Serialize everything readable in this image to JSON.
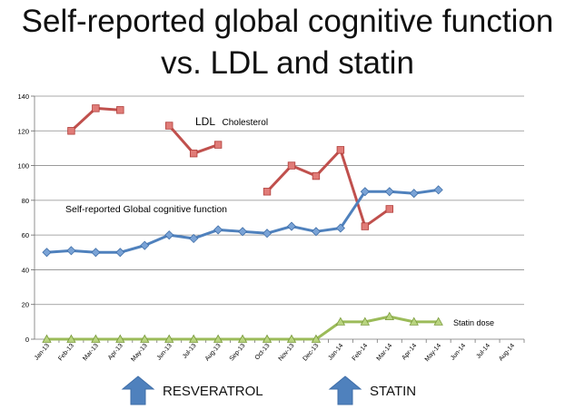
{
  "title_line1": "Self-reported global cognitive function",
  "title_line2": "vs. LDL and statin",
  "chart_data": {
    "type": "line",
    "title": "Self-reported global cognitive function vs. LDL and statin",
    "ylim": [
      0,
      140
    ],
    "yticks": [
      0,
      20,
      40,
      60,
      80,
      100,
      120,
      140
    ],
    "grid": true,
    "categories": [
      "Jan-13",
      "Feb-13",
      "Mar-13",
      "Apr-13",
      "May-13",
      "Jun-13",
      "Jul-13",
      "Aug-13",
      "Sep-13",
      "Oct-13",
      "Nov-13",
      "Dec-13",
      "Jan-14",
      "Feb-14",
      "Mar-14",
      "Apr-14",
      "May-14",
      "Jun-14",
      "Jul-14",
      "Aug-14"
    ],
    "series": [
      {
        "name": "LDL Cholesterol",
        "color": "#c0504d",
        "marker": "square",
        "segments": [
          {
            "x": [
              "Feb-13",
              "Mar-13",
              "Apr-13"
            ],
            "values": [
              120,
              133,
              132
            ]
          },
          {
            "x": [
              "Jun-13",
              "Jul-13",
              "Aug-13"
            ],
            "values": [
              123,
              107,
              112
            ]
          },
          {
            "x": [
              "Oct-13",
              "Nov-13",
              "Dec-13",
              "Jan-14",
              "Feb-14",
              "Mar-14"
            ],
            "values": [
              85,
              100,
              94,
              109,
              65,
              75
            ]
          }
        ]
      },
      {
        "name": "Self-reported Global cognitive function",
        "color": "#4f81bd",
        "marker": "diamond",
        "segments": [
          {
            "x": [
              "Jan-13",
              "Feb-13",
              "Mar-13",
              "Apr-13",
              "May-13",
              "Jun-13",
              "Jul-13",
              "Aug-13",
              "Sep-13",
              "Oct-13",
              "Nov-13",
              "Dec-13",
              "Jan-14",
              "Feb-14",
              "Mar-14",
              "Apr-14",
              "May-14"
            ],
            "values": [
              50,
              51,
              50,
              50,
              54,
              60,
              58,
              63,
              62,
              61,
              65,
              62,
              64,
              85,
              85,
              84,
              86
            ]
          }
        ]
      },
      {
        "name": "Statin dose",
        "color": "#9bbb59",
        "marker": "triangle",
        "segments": [
          {
            "x": [
              "Jan-13",
              "Feb-13",
              "Mar-13",
              "Apr-13",
              "May-13",
              "Jun-13",
              "Jul-13",
              "Aug-13",
              "Sep-13",
              "Oct-13",
              "Nov-13",
              "Dec-13",
              "Jan-14",
              "Feb-14",
              "Mar-14",
              "Apr-14",
              "May-14"
            ],
            "values": [
              0,
              0,
              0,
              0,
              0,
              0,
              0,
              0,
              0,
              0,
              0,
              0,
              10,
              10,
              13,
              10,
              10
            ]
          }
        ]
      }
    ],
    "annotations": {
      "ldl_label_main": "LDL",
      "ldl_label_rest": "Cholesterol",
      "cognitive_label": "Self-reported Global cognitive function",
      "statin_label": "Statin dose"
    }
  },
  "interventions": [
    {
      "label": "RESVERATROL",
      "at": "Jun-13",
      "color": "#4f81bd"
    },
    {
      "label": "STATIN",
      "at": "Feb-14",
      "color": "#4f81bd"
    }
  ]
}
